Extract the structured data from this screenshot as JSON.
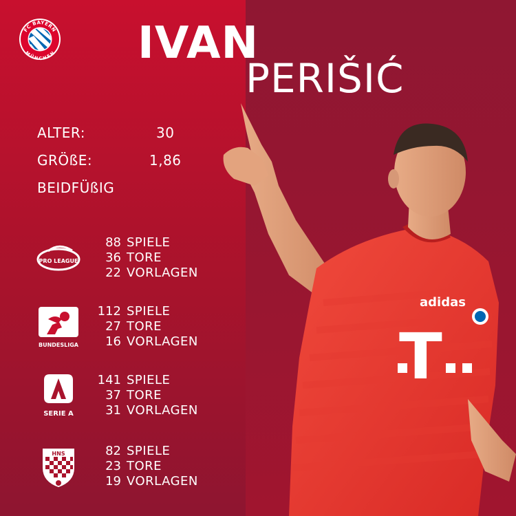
{
  "header": {
    "club_logo": {
      "top": "FC BAYERN",
      "bottom": "MÜNCHEN"
    },
    "first_name": "IVAN",
    "last_name": "PERIŠIĆ"
  },
  "info": {
    "age_label": "ALTER:",
    "age_value": "30",
    "height_label": "GRÖßE:",
    "height_value": "1,86",
    "foot": "BEIDFÜßIG"
  },
  "kit": {
    "sponsor": "T",
    "brand": "adidas"
  },
  "colors": {
    "bayern_red": "#c8102e",
    "dark_red": "#8f1732",
    "white": "#ffffff"
  },
  "leagues": [
    {
      "icon": "pro-league-icon",
      "icon_text": "PRO LEAGUE",
      "stats": [
        {
          "value": "88",
          "label": "SPIELE"
        },
        {
          "value": "36",
          "label": "TORE"
        },
        {
          "value": "22",
          "label": "VORLAGEN"
        }
      ]
    },
    {
      "icon": "bundesliga-icon",
      "icon_text": "BUNDESLIGA",
      "stats": [
        {
          "value": "112",
          "label": "SPIELE"
        },
        {
          "value": "27",
          "label": "TORE"
        },
        {
          "value": "16",
          "label": "VORLAGEN"
        }
      ]
    },
    {
      "icon": "serie-a-icon",
      "icon_text": "SERIE A",
      "stats": [
        {
          "value": "141",
          "label": "SPIELE"
        },
        {
          "value": "37",
          "label": "TORE"
        },
        {
          "value": "31",
          "label": "VORLAGEN"
        }
      ]
    },
    {
      "icon": "croatia-hns-icon",
      "icon_text": "HNS",
      "stats": [
        {
          "value": "82",
          "label": "SPIELE"
        },
        {
          "value": "23",
          "label": "TORE"
        },
        {
          "value": "19",
          "label": "VORLAGEN"
        }
      ]
    }
  ]
}
